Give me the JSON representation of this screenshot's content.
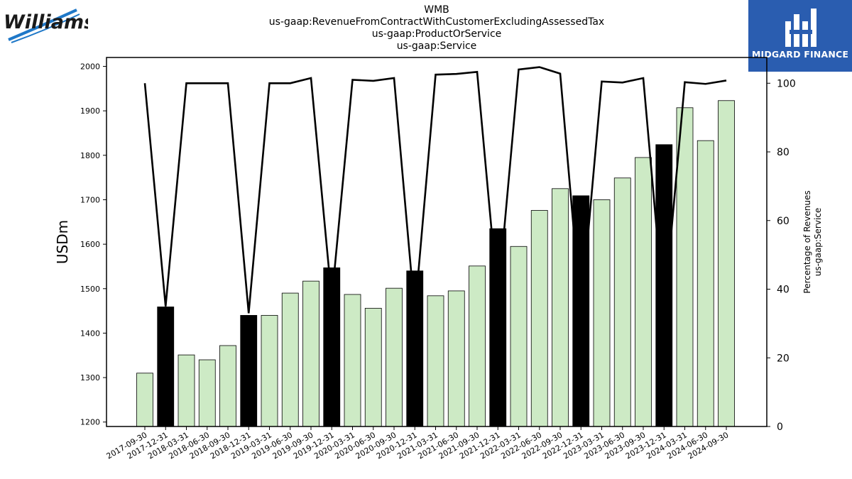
{
  "header": {
    "ticker": "WMB",
    "concept": "us-gaap:RevenueFromContractWithCustomerExcludingAssessedTax",
    "axis": "us-gaap:ProductOrService",
    "member": "us-gaap:Service"
  },
  "logos": {
    "left_text": "Williams",
    "right_text": "MIDGARD FINANCE"
  },
  "colors": {
    "bar_light": "#cdeac5",
    "bar_dark": "#000000",
    "line": "#000000",
    "brand_blue": "#2a5db0",
    "williams_blue": "#1f78c8"
  },
  "chart_data": {
    "type": "bar",
    "ylabel": "USDm",
    "y2label_line1": "Percentage of Revenues",
    "y2label_line2": "us-gaap:Service",
    "ylim": [
      1190,
      2020
    ],
    "y_ticks": [
      1200,
      1300,
      1400,
      1500,
      1600,
      1700,
      1800,
      1900,
      2000
    ],
    "y2lim": [
      0,
      107.5
    ],
    "y2_ticks": [
      0,
      20,
      40,
      60,
      80,
      100
    ],
    "grid": false,
    "categories": [
      "2017-09-30",
      "2017-12-31",
      "2018-03-31",
      "2018-06-30",
      "2018-09-30",
      "2018-12-31",
      "2019-03-31",
      "2019-06-30",
      "2019-09-30",
      "2019-12-31",
      "2020-03-31",
      "2020-06-30",
      "2020-09-30",
      "2020-12-31",
      "2021-03-31",
      "2021-06-30",
      "2021-09-30",
      "2021-12-31",
      "2022-03-31",
      "2022-06-30",
      "2022-09-30",
      "2022-12-31",
      "2023-03-31",
      "2023-06-30",
      "2023-09-30",
      "2023-12-31",
      "2024-03-31",
      "2024-06-30",
      "2024-09-30"
    ],
    "series": [
      {
        "type": "bar",
        "values": [
          1310,
          1459,
          1351,
          1340,
          1372,
          1440,
          1440,
          1490,
          1517,
          1547,
          1487,
          1456,
          1501,
          1540,
          1484,
          1495,
          1551,
          1635,
          1595,
          1676,
          1725,
          1709,
          1700,
          1749,
          1795,
          1824,
          1907,
          1833,
          1923
        ],
        "is_annual": [
          false,
          true,
          false,
          false,
          false,
          true,
          false,
          false,
          false,
          true,
          false,
          false,
          false,
          true,
          false,
          false,
          false,
          true,
          false,
          false,
          false,
          true,
          false,
          false,
          false,
          true,
          false,
          false,
          false
        ]
      },
      {
        "type": "line",
        "axis": "secondary",
        "values": [
          100,
          35,
          100,
          100,
          100,
          33,
          100,
          100,
          101.5,
          37,
          101,
          100.7,
          101.5,
          33,
          102.5,
          102.7,
          103.3,
          37,
          104,
          104.7,
          102.8,
          33,
          100.5,
          100.2,
          101.5,
          33,
          100.3,
          99.8,
          100.8
        ]
      }
    ]
  }
}
